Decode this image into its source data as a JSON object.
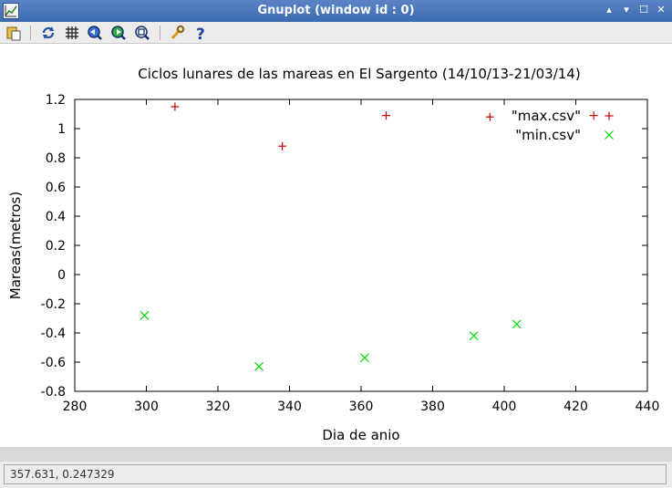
{
  "window": {
    "title": "Gnuplot (window id : 0)",
    "controls": [
      "▴",
      "▾",
      "☐",
      "✕"
    ]
  },
  "toolbar": {
    "icons": [
      "copy-clipboard-icon",
      "replot-icon",
      "grid-icon",
      "zoom-previous-icon",
      "zoom-next-icon",
      "unzoom-icon",
      "settings-wrench-icon",
      "help-icon"
    ]
  },
  "statusbar": {
    "coordinates": "357.631,  0.247329"
  },
  "colors": {
    "max_series": "#cc0000",
    "min_series": "#00dd00"
  },
  "chart_data": {
    "type": "scatter",
    "title": "Ciclos lunares de las mareas en El Sargento (14/10/13-21/03/14)",
    "xlabel": "Dia de anio",
    "ylabel": "Mareas(metros)",
    "xlim": [
      280,
      440
    ],
    "ylim": [
      -0.8,
      1.2
    ],
    "xticks": [
      280,
      300,
      320,
      340,
      360,
      380,
      400,
      420,
      440
    ],
    "yticks": [
      -0.8,
      -0.6,
      -0.4,
      -0.2,
      0,
      0.2,
      0.4,
      0.6,
      0.8,
      1,
      1.2
    ],
    "grid": false,
    "legend": "top-right",
    "series": [
      {
        "name": "\"max.csv\"",
        "marker": "plus",
        "color": "#cc0000",
        "points": [
          [
            308,
            1.15
          ],
          [
            338,
            0.88
          ],
          [
            367,
            1.09
          ],
          [
            396,
            1.08
          ],
          [
            425,
            1.09
          ]
        ]
      },
      {
        "name": "\"min.csv\"",
        "marker": "cross",
        "color": "#00dd00",
        "points": [
          [
            299.5,
            -0.28
          ],
          [
            331.5,
            -0.63
          ],
          [
            361,
            -0.57
          ],
          [
            391.5,
            -0.42
          ],
          [
            403.5,
            -0.34
          ]
        ]
      }
    ]
  }
}
